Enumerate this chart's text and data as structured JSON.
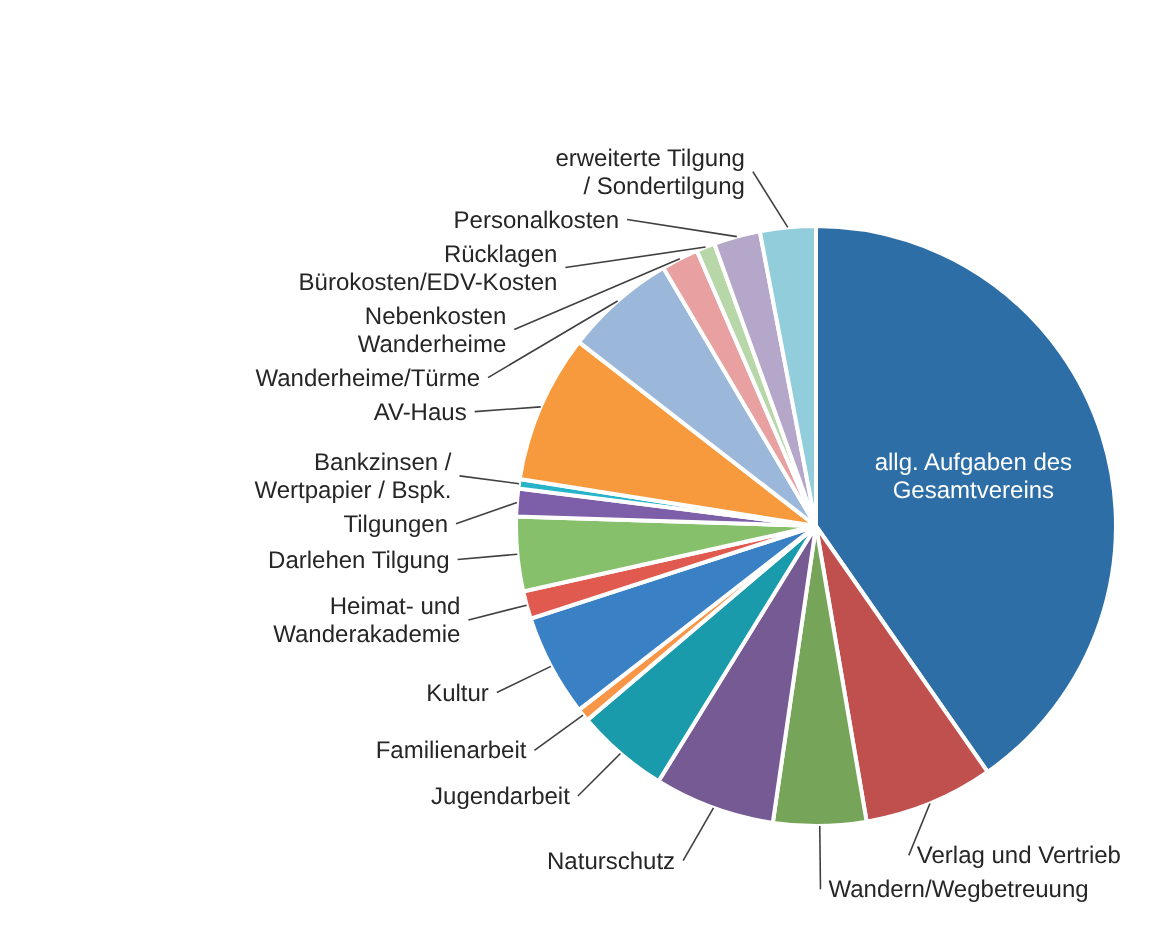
{
  "chart_data": {
    "type": "pie",
    "categories": [
      "allg. Aufgaben des\nGesamtvereins",
      "Verlag und Vertrieb",
      "Wandern/Wegbetreuung",
      "Naturschutz",
      "Jugendarbeit",
      "Familienarbeit",
      "Kultur",
      "Heimat- und\nWanderakademie",
      "Darlehen Tilgung",
      "Tilgungen",
      "Bankzinsen /\nWertpapier / Bspk.",
      "AV-Haus",
      "Wanderheime/Türme",
      "Nebenkosten\nWanderheime",
      "Rücklagen\nBürokosten/EDV-Kosten",
      "Personalkosten",
      "erweiterte Tilgung\n/ Sondertilgung"
    ],
    "values": [
      40.3,
      7,
      5,
      6.5,
      5,
      0.7,
      5.5,
      1.5,
      4,
      1.5,
      0.5,
      8,
      6,
      2,
      1,
      2.5,
      3
    ],
    "colors": [
      "#2e6ea6",
      "#c0504d",
      "#76a55a",
      "#765a94",
      "#1a9bab",
      "#f79646",
      "#3a80c4",
      "#e05a50",
      "#86c06a",
      "#7d5ea8",
      "#27b3c8",
      "#f79a3e",
      "#9bb7d9",
      "#e8a0a0",
      "#b8d7a8",
      "#b4a7c9",
      "#92cddc"
    ]
  }
}
